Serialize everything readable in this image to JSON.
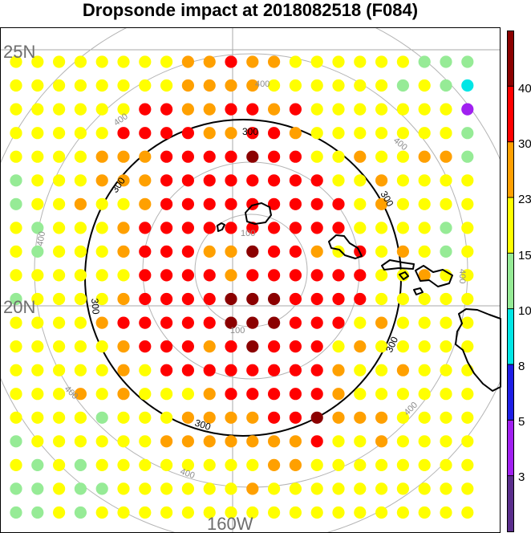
{
  "title": "Dropsonde impact at 2018082518 (F084)",
  "map": {
    "lat_labels": [
      "25N",
      "20N"
    ],
    "lon_labels": [
      "160W"
    ],
    "ring_labels_gray": [
      "100",
      "100",
      "400",
      "400",
      "400",
      "400",
      "400",
      "400",
      "400"
    ],
    "ring_labels_black": [
      "300",
      "300",
      "300",
      "300",
      "300",
      "300"
    ]
  },
  "colorbar": {
    "tick_labels": [
      "40",
      "30",
      "23",
      "15",
      "10",
      "8",
      "5",
      "3"
    ],
    "colors": [
      "#5a2d8c",
      "#a020f0",
      "#1e1ee6",
      "#00e6e6",
      "#96eb96",
      "#ffff00",
      "#ffa000",
      "#ff0000",
      "#8b0000"
    ]
  },
  "chart_data": {
    "type": "scatter",
    "title": "Dropsonde impact at 2018082518 (F084)",
    "grid_columns": 22,
    "grid_rows": 20,
    "color_classes": {
      "P": "< 3",
      "V": "3-5",
      "B": "5-8",
      "C": "8-10",
      "G": "10-15",
      "Y": "15-23",
      "O": "23-30",
      "R": "30-40",
      "D": "> 40"
    },
    "rows": [
      "YYYYYYYYOOROOYYYYYYGGG",
      "YYYYYYYYOOOOYYYYYYGYGC",
      "YYYYYYRROORRORYYYYYYYV",
      "YYYYYRRRROORROYYYYYYYG",
      "YYYYOOORRRRDRRYYOYYOOG",
      "GYYYOOORRRRRRRRYYOYYYY",
      "GYYOYYORRRRRRRRRYOYYYY",
      "YGYYYORRRRRRRRRRYYYYGY",
      "YGYYYORRROODRROYRYOYGY",
      "YYYYYYRRRRORRRRRRYYOYY",
      "GYYYYORRRRDDDRRRRYYYYY",
      "YYYYORRRRRDDDRRRYOYYYY",
      "YYYYYORRRORDRRRYOYYYYY",
      "YYYYYOYRRRRRRRROYYOYYY",
      "YYYOYOYYYORRRRROYYYYYY",
      "YYYYGYYYOOOORRDOOOYYYY",
      "GYYYYYYOOOOOOORYYOYYYY",
      "YGYGYYYYYYYYOOYYYYYYYY",
      "GGYGGYYYYYYOYYYYYYYYYY",
      "GGYGYYYYYYYYYYYYYYYYYY"
    ]
  }
}
